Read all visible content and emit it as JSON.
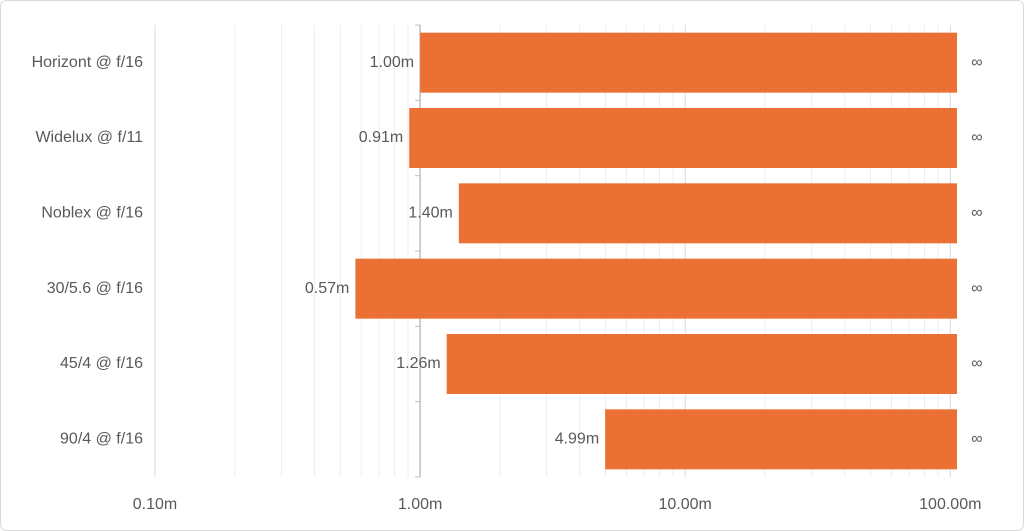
{
  "chart_data": {
    "type": "range-bar",
    "categories": [
      "Horizont @ f/16",
      "Widelux @ f/11",
      "Noblex @ f/16",
      "30/5.6 @ f/16",
      "45/4 @ f/16",
      "90/4 @ f/16"
    ],
    "values": [
      1.0,
      0.91,
      1.4,
      0.57,
      1.26,
      4.99
    ],
    "value_labels": [
      "1.00m",
      "0.91m",
      "1.40m",
      "0.57m",
      "1.26m",
      "4.99m"
    ],
    "ends": [
      106,
      106,
      106,
      106,
      106,
      106
    ],
    "end_labels": [
      "∞",
      "∞",
      "∞",
      "∞",
      "∞",
      "∞"
    ],
    "color": "#ea7133",
    "log_x": true,
    "xlim": [
      0.1,
      106
    ],
    "xticks": [
      {
        "value": 0.1,
        "label": "0.10m"
      },
      {
        "value": 1,
        "label": "1.00m"
      },
      {
        "value": 10,
        "label": "10.00m"
      },
      {
        "value": 100,
        "label": "100.00m"
      }
    ],
    "y_axis_at": 1,
    "grid": true,
    "minor_grid": true
  }
}
